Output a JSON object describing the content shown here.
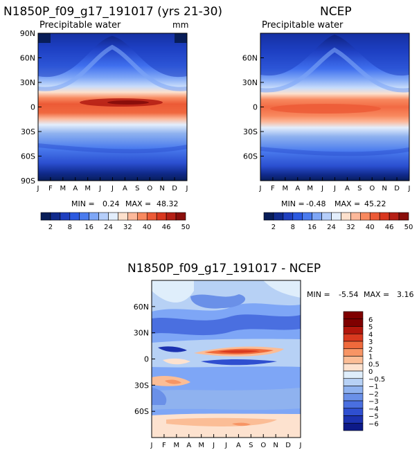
{
  "months": [
    "J",
    "F",
    "M",
    "A",
    "M",
    "J",
    "J",
    "A",
    "S",
    "O",
    "N",
    "D",
    "J"
  ],
  "lat_ticks": [
    "90N",
    "60N",
    "30N",
    "0",
    "30S",
    "60S",
    "90S"
  ],
  "lat_ticks_diff": [
    "60N",
    "30N",
    "0",
    "30S",
    "60S"
  ],
  "chart_data": [
    {
      "type": "heatmap",
      "title": "N1850P_f09_g17_191017 (yrs 21-30)",
      "subtitle": "Precipitable water",
      "units": "mm",
      "x": "month",
      "y": "latitude",
      "min_label": "MIN =",
      "min": "0.24",
      "max_label": "MAX =",
      "max": "48.32",
      "colorbar_levels": [
        2,
        8,
        16,
        24,
        32,
        40,
        46,
        50
      ],
      "colorbar_tick_labels": [
        "2",
        "8",
        "16",
        "24",
        "32",
        "40",
        "46",
        "50"
      ]
    },
    {
      "type": "heatmap",
      "title": "NCEP",
      "subtitle": "Precipitable water",
      "x": "month",
      "y": "latitude",
      "min_label": "MIN =",
      "min": "-0.48",
      "max_label": "MAX =",
      "max": "45.22",
      "colorbar_levels": [
        2,
        8,
        16,
        24,
        32,
        40,
        46,
        50
      ],
      "colorbar_tick_labels": [
        "2",
        "8",
        "16",
        "24",
        "32",
        "40",
        "46",
        "50"
      ]
    },
    {
      "type": "heatmap",
      "title": "N1850P_f09_g17_191017 - NCEP",
      "x": "month",
      "y": "latitude",
      "min_label": "MIN =",
      "min": "-5.54",
      "max_label": "MAX =",
      "max": "3.16",
      "colorbar_levels": [
        6,
        5,
        4,
        3,
        2,
        1,
        0.5,
        0,
        -0.5,
        -1,
        -2,
        -3,
        -4,
        -5,
        -6
      ],
      "colorbar_tick_labels": [
        "6",
        "5",
        "4",
        "3",
        "2",
        "1",
        "0.5",
        "0",
        "−0.5",
        "−1",
        "−2",
        "−3",
        "−4",
        "−5",
        "−6"
      ]
    }
  ],
  "colors": {
    "scale_pw": [
      "#081d58",
      "#102a8c",
      "#1f3fbf",
      "#2b59e0",
      "#4a7bee",
      "#7ea6f6",
      "#b5cefa",
      "#e3eefc",
      "#fde0cc",
      "#fcb89a",
      "#f8895f",
      "#ec5a36",
      "#d9371f",
      "#b51f15",
      "#8a0e0b"
    ],
    "scale_diff": [
      "#7f0000",
      "#b2160c",
      "#d93a1f",
      "#ef6a3c",
      "#f79565",
      "#fbbd96",
      "#fde2cf",
      "#dfeefb",
      "#b7d1f5",
      "#8fb2ef",
      "#6a90e8",
      "#4a6fe0",
      "#2f4fd0",
      "#1c32b0",
      "#0d1a88"
    ]
  }
}
